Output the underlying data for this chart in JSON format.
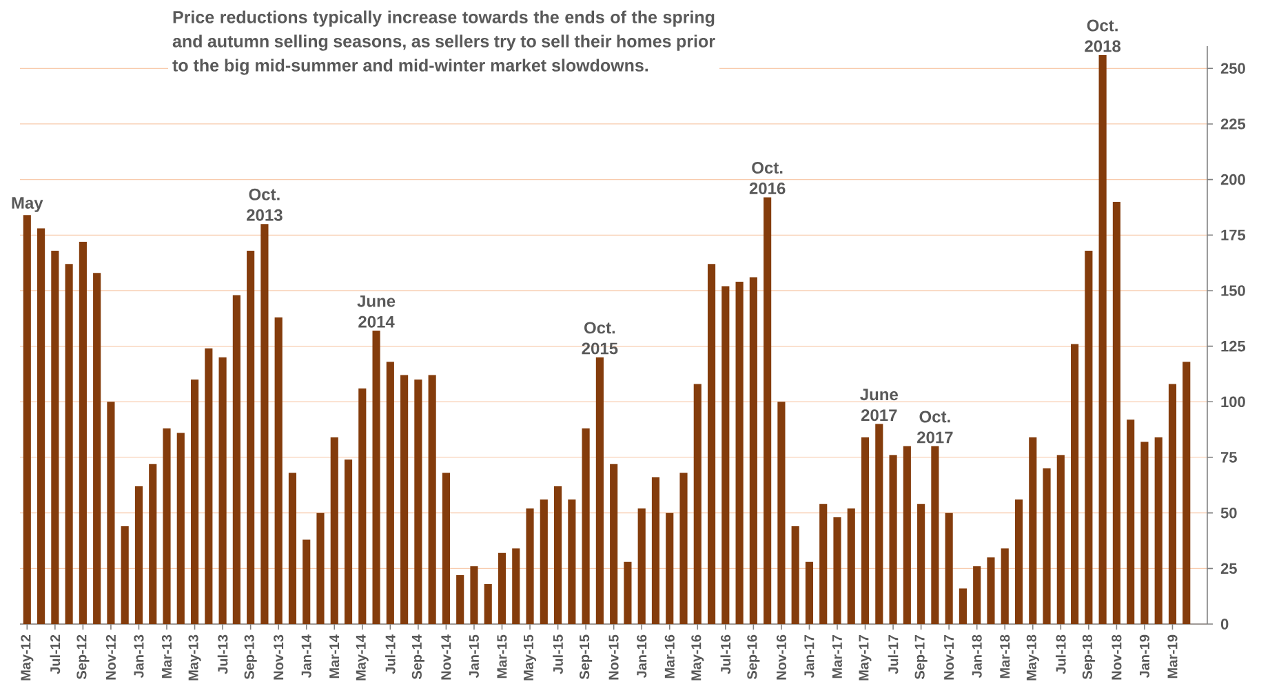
{
  "chart_data": {
    "type": "bar",
    "title": "Price reductions typically increase towards the ends of the spring and autumn selling seasons, as sellers try to sell their homes prior to the big mid-summer and mid-winter market slowdowns.",
    "x": [
      "2012-05",
      "2012-06",
      "2012-07",
      "2012-08",
      "2012-09",
      "2012-10",
      "2012-11",
      "2012-12",
      "2013-01",
      "2013-02",
      "2013-03",
      "2013-04",
      "2013-05",
      "2013-06",
      "2013-07",
      "2013-08",
      "2013-09",
      "2013-10",
      "2013-11",
      "2013-12",
      "2014-01",
      "2014-02",
      "2014-03",
      "2014-04",
      "2014-05",
      "2014-06",
      "2014-07",
      "2014-08",
      "2014-09",
      "2014-10",
      "2014-11",
      "2014-12",
      "2015-01",
      "2015-02",
      "2015-03",
      "2015-04",
      "2015-05",
      "2015-06",
      "2015-07",
      "2015-08",
      "2015-09",
      "2015-10",
      "2015-11",
      "2015-12",
      "2016-01",
      "2016-02",
      "2016-03",
      "2016-04",
      "2016-05",
      "2016-06",
      "2016-07",
      "2016-08",
      "2016-09",
      "2016-10",
      "2016-11",
      "2016-12",
      "2017-01",
      "2017-02",
      "2017-03",
      "2017-04",
      "2017-05",
      "2017-06",
      "2017-07",
      "2017-08",
      "2017-09",
      "2017-10",
      "2017-11",
      "2017-12",
      "2018-01",
      "2018-02",
      "2018-03",
      "2018-04",
      "2018-05",
      "2018-06",
      "2018-07",
      "2018-08",
      "2018-09",
      "2018-10",
      "2018-11",
      "2018-12",
      "2019-01",
      "2019-02",
      "2019-03",
      "2019-04"
    ],
    "values": [
      184,
      178,
      168,
      162,
      172,
      158,
      100,
      44,
      62,
      72,
      88,
      86,
      110,
      124,
      120,
      148,
      168,
      180,
      138,
      68,
      38,
      50,
      84,
      74,
      106,
      132,
      118,
      112,
      110,
      112,
      68,
      22,
      26,
      18,
      32,
      34,
      52,
      56,
      62,
      56,
      88,
      120,
      72,
      28,
      52,
      66,
      50,
      68,
      108,
      162,
      152,
      154,
      156,
      192,
      100,
      44,
      28,
      54,
      48,
      52,
      84,
      90,
      76,
      80,
      54,
      80,
      50,
      16,
      26,
      30,
      34,
      56,
      84,
      70,
      76,
      126,
      168,
      256,
      190,
      92,
      82,
      84,
      108,
      118
    ],
    "color": "#843c0c",
    "xlim": [
      "2012-04-16",
      "2019-05-16"
    ],
    "xticks": [
      {
        "value": "2012-05",
        "label": "May-12"
      },
      {
        "value": "2012-07",
        "label": "Jul-12"
      },
      {
        "value": "2012-09",
        "label": "Sep-12"
      },
      {
        "value": "2012-11",
        "label": "Nov-12"
      },
      {
        "value": "2013-01",
        "label": "Jan-13"
      },
      {
        "value": "2013-03",
        "label": "Mar-13"
      },
      {
        "value": "2013-05",
        "label": "May-13"
      },
      {
        "value": "2013-07",
        "label": "Jul-13"
      },
      {
        "value": "2013-09",
        "label": "Sep-13"
      },
      {
        "value": "2013-11",
        "label": "Nov-13"
      },
      {
        "value": "2014-01",
        "label": "Jan-14"
      },
      {
        "value": "2014-03",
        "label": "Mar-14"
      },
      {
        "value": "2014-05",
        "label": "May-14"
      },
      {
        "value": "2014-07",
        "label": "Jul-14"
      },
      {
        "value": "2014-09",
        "label": "Sep-14"
      },
      {
        "value": "2014-11",
        "label": "Nov-14"
      },
      {
        "value": "2015-01",
        "label": "Jan-15"
      },
      {
        "value": "2015-03",
        "label": "Mar-15"
      },
      {
        "value": "2015-05",
        "label": "May-15"
      },
      {
        "value": "2015-07",
        "label": "Jul-15"
      },
      {
        "value": "2015-09",
        "label": "Sep-15"
      },
      {
        "value": "2015-11",
        "label": "Nov-15"
      },
      {
        "value": "2016-01",
        "label": "Jan-16"
      },
      {
        "value": "2016-03",
        "label": "Mar-16"
      },
      {
        "value": "2016-05",
        "label": "May-16"
      },
      {
        "value": "2016-07",
        "label": "Jul-16"
      },
      {
        "value": "2016-09",
        "label": "Sep-16"
      },
      {
        "value": "2016-11",
        "label": "Nov-16"
      },
      {
        "value": "2017-01",
        "label": "Jan-17"
      },
      {
        "value": "2017-03",
        "label": "Mar-17"
      },
      {
        "value": "2017-05",
        "label": "May-17"
      },
      {
        "value": "2017-07",
        "label": "Jul-17"
      },
      {
        "value": "2017-09",
        "label": "Sep-17"
      },
      {
        "value": "2017-11",
        "label": "Nov-17"
      },
      {
        "value": "2018-01",
        "label": "Jan-18"
      },
      {
        "value": "2018-03",
        "label": "Mar-18"
      },
      {
        "value": "2018-05",
        "label": "May-18"
      },
      {
        "value": "2018-07",
        "label": "Jul-18"
      },
      {
        "value": "2018-09",
        "label": "Sep-18"
      },
      {
        "value": "2018-11",
        "label": "Nov-18"
      },
      {
        "value": "2019-01",
        "label": "Jan-19"
      },
      {
        "value": "2019-03",
        "label": "Mar-19"
      }
    ],
    "ylim": [
      0,
      260
    ],
    "yticks": [
      0,
      25,
      50,
      75,
      100,
      125,
      150,
      175,
      200,
      225,
      250
    ],
    "grid": "y",
    "annotations": [
      {
        "text": "May",
        "x": "2012-05",
        "y": 184
      },
      {
        "text": "Oct. 2013",
        "x": "2013-10",
        "y": 180
      },
      {
        "text": "June 2014",
        "x": "2014-06",
        "y": 132
      },
      {
        "text": "Oct. 2015",
        "x": "2015-10",
        "y": 120
      },
      {
        "text": "Oct. 2016",
        "x": "2016-10",
        "y": 192
      },
      {
        "text": "June 2017",
        "x": "2017-06",
        "y": 90
      },
      {
        "text": "Oct. 2017",
        "x": "2017-10",
        "y": 80
      },
      {
        "text": "Oct. 2018",
        "x": "2018-10",
        "y": 256
      }
    ]
  }
}
